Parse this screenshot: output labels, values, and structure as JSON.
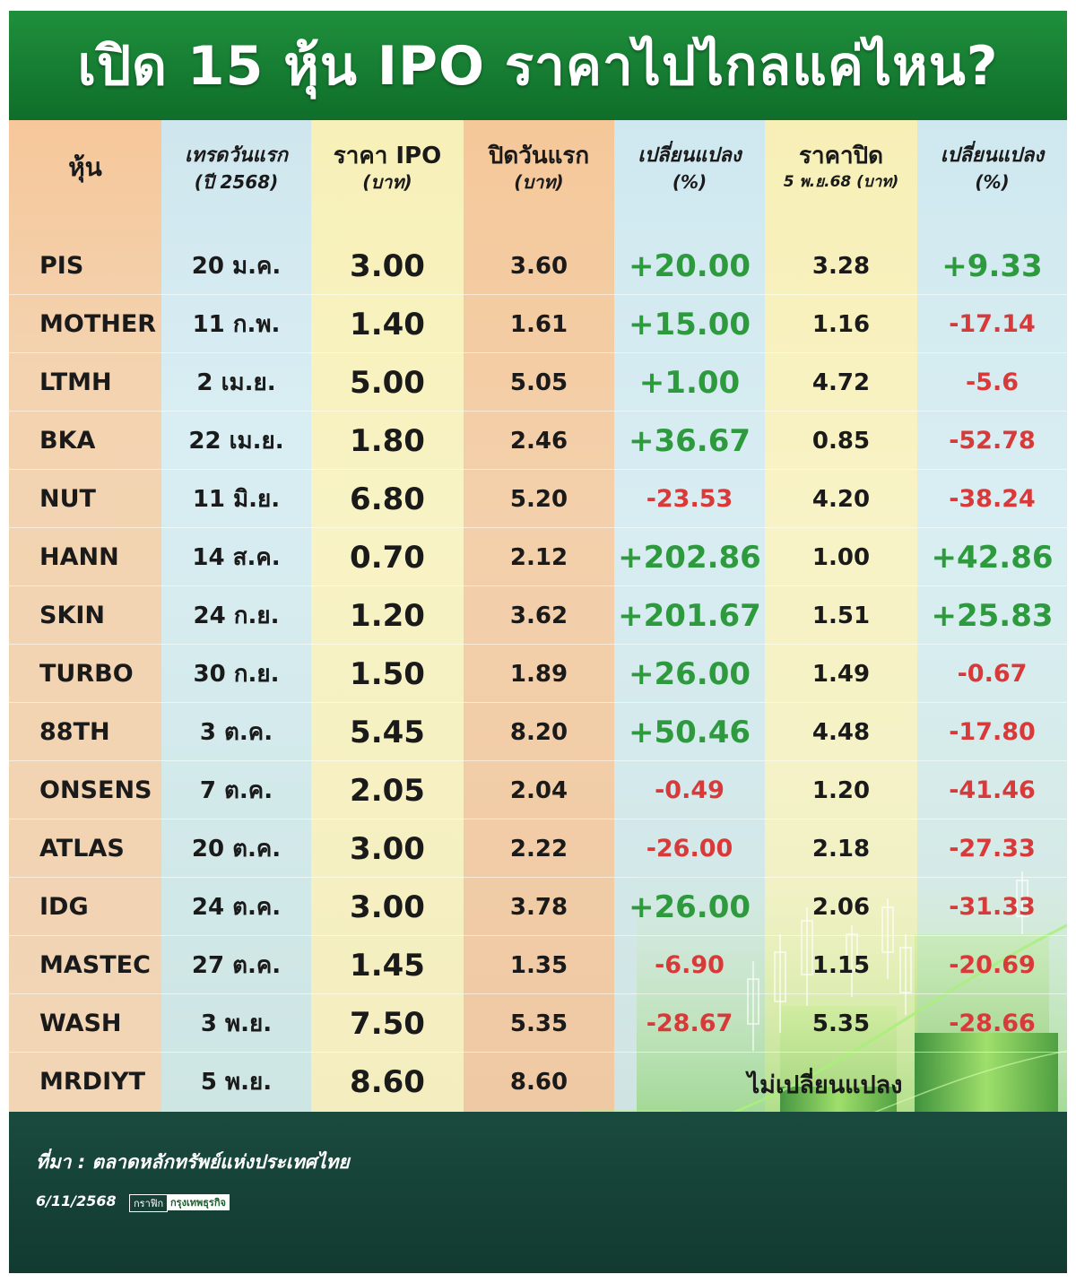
{
  "title": "เปิด 15 หุ้น IPO ราคาไปไกลแค่ไหน?",
  "headers": {
    "stock": "หุ้น",
    "first_trade_main": "เทรดวันแรก",
    "first_trade_sub": "(ปี 2568)",
    "ipo_main": "ราคา IPO",
    "ipo_sub": "(บาท)",
    "first_close_main": "ปิดวันแรก",
    "first_close_sub": "(บาท)",
    "change1_main": "เปลี่ยนแปลง",
    "change1_sub": "(%)",
    "close_main": "ราคาปิด",
    "close_sub": "5 พ.ย.68 (บาท)",
    "change2_main": "เปลี่ยนแปลง",
    "change2_sub": "(%)"
  },
  "rows": [
    {
      "stock": "PIS",
      "date": "20 ม.ค.",
      "ipo": "3.00",
      "first_close": "3.60",
      "change1": "+20.00",
      "close": "3.28",
      "change2": "+9.33"
    },
    {
      "stock": "MOTHER",
      "date": "11 ก.พ.",
      "ipo": "1.40",
      "first_close": "1.61",
      "change1": "+15.00",
      "close": "1.16",
      "change2": "-17.14"
    },
    {
      "stock": "LTMH",
      "date": "2 เม.ย.",
      "ipo": "5.00",
      "first_close": "5.05",
      "change1": "+1.00",
      "close": "4.72",
      "change2": "-5.6"
    },
    {
      "stock": "BKA",
      "date": "22 เม.ย.",
      "ipo": "1.80",
      "first_close": "2.46",
      "change1": "+36.67",
      "close": "0.85",
      "change2": "-52.78"
    },
    {
      "stock": "NUT",
      "date": "11 มิ.ย.",
      "ipo": "6.80",
      "first_close": "5.20",
      "change1": "-23.53",
      "close": "4.20",
      "change2": "-38.24"
    },
    {
      "stock": "HANN",
      "date": "14 ส.ค.",
      "ipo": "0.70",
      "first_close": "2.12",
      "change1": "+202.86",
      "close": "1.00",
      "change2": "+42.86"
    },
    {
      "stock": "SKIN",
      "date": "24 ก.ย.",
      "ipo": "1.20",
      "first_close": "3.62",
      "change1": "+201.67",
      "close": "1.51",
      "change2": "+25.83"
    },
    {
      "stock": "TURBO",
      "date": "30 ก.ย.",
      "ipo": "1.50",
      "first_close": "1.89",
      "change1": "+26.00",
      "close": "1.49",
      "change2": "-0.67"
    },
    {
      "stock": "88TH",
      "date": "3 ต.ค.",
      "ipo": "5.45",
      "first_close": "8.20",
      "change1": "+50.46",
      "close": "4.48",
      "change2": "-17.80"
    },
    {
      "stock": "ONSENS",
      "date": "7 ต.ค.",
      "ipo": "2.05",
      "first_close": "2.04",
      "change1": "-0.49",
      "close": "1.20",
      "change2": "-41.46"
    },
    {
      "stock": "ATLAS",
      "date": "20 ต.ค.",
      "ipo": "3.00",
      "first_close": "2.22",
      "change1": "-26.00",
      "close": "2.18",
      "change2": "-27.33"
    },
    {
      "stock": "IDG",
      "date": "24 ต.ค.",
      "ipo": "3.00",
      "first_close": "3.78",
      "change1": "+26.00",
      "close": "2.06",
      "change2": "-31.33"
    },
    {
      "stock": "MASTEC",
      "date": "27 ต.ค.",
      "ipo": "1.45",
      "first_close": "1.35",
      "change1": "-6.90",
      "close": "1.15",
      "change2": "-20.69"
    },
    {
      "stock": "WASH",
      "date": "3 พ.ย.",
      "ipo": "7.50",
      "first_close": "5.35",
      "change1": "-28.67",
      "close": "5.35",
      "change2": "-28.66"
    },
    {
      "stock": "MRDIYT",
      "date": "5 พ.ย.",
      "ipo": "8.60",
      "first_close": "8.60",
      "change1": "",
      "close": "",
      "change2": ""
    }
  ],
  "no_change_label": "ไม่เปลี่ยนแปลง",
  "source": "ที่มา : ตลาดหลักทรัพย์แห่งประเทศไทย",
  "date": "6/11/2568",
  "credit_label": "กราฟิก",
  "credit_brand": "กรุงเทพธุรกิจ",
  "colors": {
    "positive": "#2d9a3e",
    "negative": "#d83a3a",
    "title_bg": "#1f8f3c"
  },
  "chart_data": {
    "type": "table",
    "columns": [
      "หุ้น",
      "เทรดวันแรก (ปี 2568)",
      "ราคา IPO (บาท)",
      "ปิดวันแรก (บาท)",
      "เปลี่ยนแปลง (%)",
      "ราคาปิด 5 พ.ย.68 (บาท)",
      "เปลี่ยนแปลง (%)"
    ],
    "categories": [
      "PIS",
      "MOTHER",
      "LTMH",
      "BKA",
      "NUT",
      "HANN",
      "SKIN",
      "TURBO",
      "88TH",
      "ONSENS",
      "ATLAS",
      "IDG",
      "MASTEC",
      "WASH",
      "MRDIYT"
    ],
    "series": [
      {
        "name": "ราคา IPO",
        "values": [
          3.0,
          1.4,
          5.0,
          1.8,
          6.8,
          0.7,
          1.2,
          1.5,
          5.45,
          2.05,
          3.0,
          3.0,
          1.45,
          7.5,
          8.6
        ]
      },
      {
        "name": "ปิดวันแรก",
        "values": [
          3.6,
          1.61,
          5.05,
          2.46,
          5.2,
          2.12,
          3.62,
          1.89,
          8.2,
          2.04,
          2.22,
          3.78,
          1.35,
          5.35,
          8.6
        ]
      },
      {
        "name": "เปลี่ยนแปลง",
        "values": [
          20.0,
          15.0,
          1.0,
          36.67,
          -23.53,
          202.86,
          201.67,
          26.0,
          50.46,
          -0.49,
          -26.0,
          26.0,
          -6.9,
          -28.67,
          null
        ]
      },
      {
        "name": "ราคาปิด",
        "values": [
          3.28,
          1.16,
          4.72,
          0.85,
          4.2,
          1.0,
          1.51,
          1.49,
          4.48,
          1.2,
          2.18,
          2.06,
          1.15,
          5.35,
          null
        ]
      },
      {
        "name": "เปลี่ยนแปลง",
        "values": [
          9.33,
          -17.14,
          -5.6,
          -52.78,
          -38.24,
          42.86,
          25.83,
          -0.67,
          -17.8,
          -41.46,
          -27.33,
          -31.33,
          -20.69,
          -28.66,
          null
        ]
      }
    ]
  }
}
